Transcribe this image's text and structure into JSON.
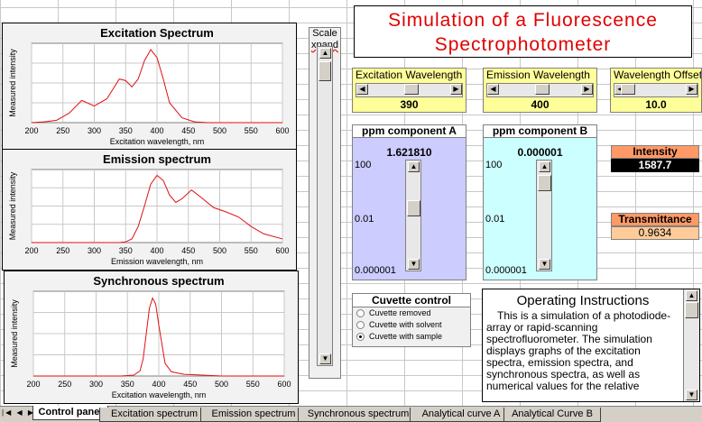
{
  "title": "Simulation of  a Fluorescence Spectrophotometer",
  "charts": [
    {
      "type": "line",
      "title": "Excitation Spectrum",
      "x_label": "Excitation wavelength, nm",
      "y_label": "Measured intensity",
      "xlim": [
        200,
        600
      ],
      "xticks": [
        200,
        250,
        300,
        350,
        400,
        450,
        500,
        550,
        600
      ],
      "ylim": [
        0,
        100
      ],
      "color": "#e01010",
      "x": [
        200,
        220,
        240,
        260,
        280,
        300,
        320,
        340,
        350,
        360,
        370,
        380,
        390,
        400,
        410,
        420,
        440,
        460,
        480,
        500,
        550,
        600
      ],
      "values": [
        0,
        1,
        3,
        12,
        28,
        21,
        30,
        55,
        53,
        45,
        55,
        78,
        92,
        82,
        55,
        25,
        6,
        1,
        0,
        0,
        0,
        0
      ]
    },
    {
      "type": "line",
      "title": "Emission spectrum",
      "x_label": "Emission wavelength, nm",
      "y_label": "Measured intensity",
      "xlim": [
        200,
        600
      ],
      "xticks": [
        200,
        250,
        300,
        350,
        400,
        450,
        500,
        550,
        600
      ],
      "ylim": [
        0,
        100
      ],
      "color": "#e01010",
      "x": [
        200,
        250,
        300,
        340,
        350,
        360,
        370,
        380,
        390,
        400,
        410,
        420,
        430,
        440,
        455,
        470,
        490,
        510,
        530,
        550,
        570,
        600
      ],
      "values": [
        0,
        0,
        0,
        0,
        1,
        5,
        22,
        50,
        80,
        92,
        85,
        65,
        55,
        60,
        72,
        62,
        48,
        42,
        35,
        22,
        12,
        5
      ]
    },
    {
      "type": "line",
      "title": "Synchronous spectrum",
      "x_label": "Excitation wavelength, nm",
      "y_label": "Measured intensity",
      "xlim": [
        200,
        600
      ],
      "xticks": [
        200,
        250,
        300,
        350,
        400,
        450,
        500,
        550,
        600
      ],
      "ylim": [
        0,
        100
      ],
      "color": "#e01010",
      "x": [
        200,
        300,
        340,
        360,
        370,
        375,
        380,
        385,
        390,
        395,
        400,
        410,
        420,
        440,
        470,
        500,
        600
      ],
      "values": [
        0,
        0,
        0,
        1,
        6,
        20,
        50,
        80,
        92,
        85,
        60,
        15,
        5,
        2,
        1,
        0,
        0
      ]
    }
  ],
  "scale_control": {
    "lines": [
      "Scale",
      "xpand"
    ]
  },
  "wavelength_controls": [
    {
      "label": "Excitation Wavelength",
      "value": "390"
    },
    {
      "label": "Emission Wavelength",
      "value": "400"
    },
    {
      "label": "Wavelength Offset",
      "value": "10.0"
    }
  ],
  "components": [
    {
      "label": "ppm component A",
      "value": "1.621810",
      "scale_labels": [
        "100",
        "0.01",
        "0.000001"
      ],
      "color": "#ccccff"
    },
    {
      "label": "ppm component B",
      "value": "0.000001",
      "scale_labels": [
        "100",
        "0.01",
        "0.000001"
      ],
      "color": "#ccffff"
    }
  ],
  "intensity": {
    "label": "Intensity",
    "value": "1587.7"
  },
  "transmittance": {
    "label": "Transmittance",
    "value": "0.9634"
  },
  "cuvette": {
    "title": "Cuvette control",
    "options": [
      "Cuvette removed",
      "Cuvette with solvent",
      "Cuvette with sample"
    ],
    "selected": 2
  },
  "instructions": {
    "title": "Operating Instructions",
    "text": "This is a simulation of a photodiode-array or rapid-scanning spectrofluorometer. The simulation displays graphs of the excitation spectra, emission spectra, and synchronous spectra, as well as numerical values for the relative"
  },
  "sheet_tabs": [
    "Control panel",
    "Excitation spectrum",
    "Emission spectrum",
    "Synchronous spectrum",
    "Analytical curve A",
    "Analytical Curve B"
  ],
  "active_tab": 0
}
